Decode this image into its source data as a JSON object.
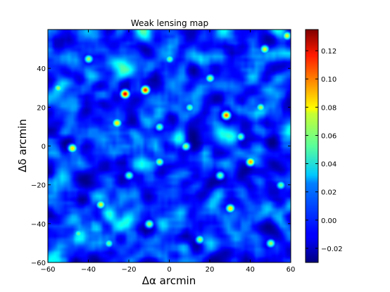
{
  "chart_data": {
    "type": "heatmap",
    "title": "Weak lensing map",
    "xlabel": "Δα arcmin",
    "ylabel": "Δδ arcmin",
    "xlim": [
      -60,
      60
    ],
    "ylim": [
      -60,
      60
    ],
    "x_ticks": [
      -60,
      -40,
      -20,
      0,
      20,
      40,
      60
    ],
    "y_ticks": [
      -60,
      -40,
      -20,
      0,
      20,
      40
    ],
    "x_tick_labels": [
      "−60",
      "−40",
      "−20",
      "0",
      "20",
      "40",
      "60"
    ],
    "y_tick_labels": [
      "−60",
      "−40",
      "−20",
      "0",
      "20",
      "40"
    ],
    "colormap": "jet",
    "colorbar": {
      "range": [
        -0.03,
        0.135
      ],
      "ticks": [
        -0.02,
        0.0,
        0.02,
        0.04,
        0.06,
        0.08,
        0.1,
        0.12
      ],
      "tick_labels": [
        "−0.02",
        "0.00",
        "0.02",
        "0.04",
        "0.06",
        "0.08",
        "0.10",
        "0.12"
      ]
    },
    "grid": false,
    "peaks": [
      {
        "x": -22,
        "y": 27,
        "value": 0.12
      },
      {
        "x": -12,
        "y": 29,
        "value": 0.11
      },
      {
        "x": 28,
        "y": 16,
        "value": 0.1
      },
      {
        "x": -26,
        "y": 12,
        "value": 0.08
      },
      {
        "x": 40,
        "y": -8,
        "value": 0.09
      },
      {
        "x": -48,
        "y": -1,
        "value": 0.08
      },
      {
        "x": 30,
        "y": -32,
        "value": 0.08
      },
      {
        "x": 47,
        "y": 50,
        "value": 0.07
      },
      {
        "x": 58,
        "y": 57,
        "value": 0.07
      },
      {
        "x": -34,
        "y": -30,
        "value": 0.07
      },
      {
        "x": 8,
        "y": 0,
        "value": 0.06
      },
      {
        "x": -5,
        "y": -8,
        "value": 0.06
      },
      {
        "x": 15,
        "y": -48,
        "value": 0.06
      },
      {
        "x": -40,
        "y": 45,
        "value": 0.06
      },
      {
        "x": 20,
        "y": 35,
        "value": 0.06
      },
      {
        "x": -55,
        "y": 30,
        "value": 0.06
      },
      {
        "x": 50,
        "y": -50,
        "value": 0.06
      },
      {
        "x": -10,
        "y": -40,
        "value": 0.06
      },
      {
        "x": 45,
        "y": 20,
        "value": 0.06
      },
      {
        "x": -30,
        "y": -50,
        "value": 0.05
      },
      {
        "x": 0,
        "y": 45,
        "value": 0.05
      },
      {
        "x": 35,
        "y": 5,
        "value": 0.05
      },
      {
        "x": -20,
        "y": -15,
        "value": 0.05
      },
      {
        "x": 10,
        "y": 20,
        "value": 0.05
      },
      {
        "x": -45,
        "y": -45,
        "value": 0.05
      },
      {
        "x": 55,
        "y": -20,
        "value": 0.05
      },
      {
        "x": 25,
        "y": -15,
        "value": 0.05
      },
      {
        "x": -5,
        "y": 10,
        "value": 0.05
      }
    ],
    "background_range": [
      -0.03,
      0.05
    ]
  }
}
